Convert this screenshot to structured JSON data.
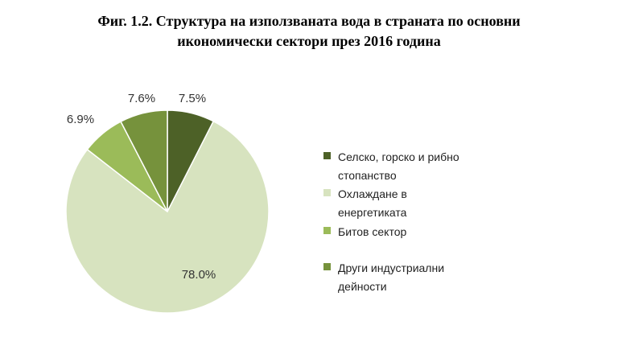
{
  "title_line1": "Фиг. 1.2. Структура на използваната вода в страната по основни",
  "title_line2": "икономически сектори през 2016 година",
  "chart_data": {
    "type": "pie",
    "title": "Фиг. 1.2. Структура на използваната вода в страната по основни икономически сектори през 2016 година",
    "slices": [
      {
        "label": "Селско, горско и рибно стопанство",
        "value": 7.5,
        "display": "7.5%",
        "color": "#4d6127"
      },
      {
        "label": "Охлаждане в енергетиката",
        "value": 78.0,
        "display": "78.0%",
        "color": "#d7e3bf"
      },
      {
        "label": "Битов сектор",
        "value": 6.9,
        "display": "6.9%",
        "color": "#9bbb59"
      },
      {
        "label": "Други индустриални дейности",
        "value": 7.6,
        "display": "7.6%",
        "color": "#76923c"
      }
    ],
    "legend_position": "right"
  },
  "legend": [
    {
      "line1": "Селско, горско и рибно",
      "line2": "стопанство"
    },
    {
      "line1": "Охлаждане в",
      "line2": "енергетиката"
    },
    {
      "line1": "Битов сектор",
      "line2": ""
    },
    {
      "line1": "Други индустриални",
      "line2": "дейности"
    }
  ]
}
